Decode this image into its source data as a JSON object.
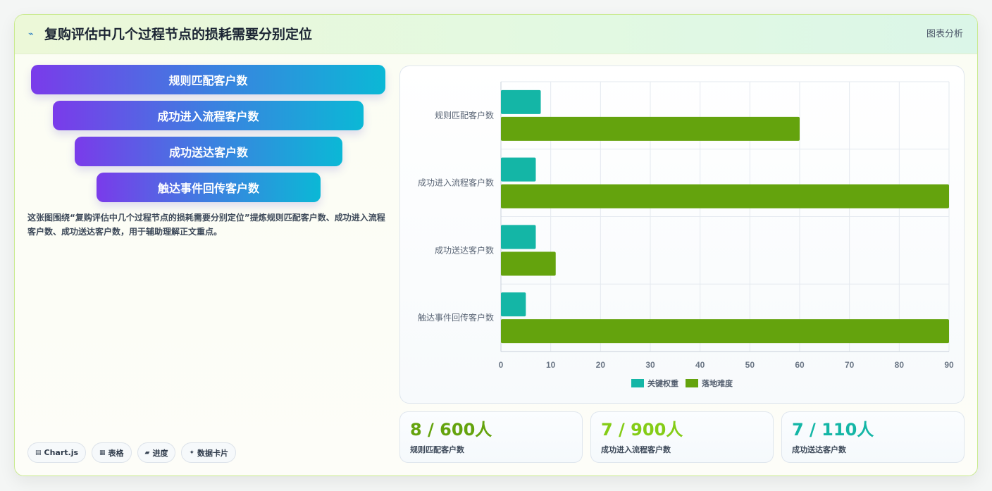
{
  "header": {
    "icon": "chart-line-icon",
    "title": "复购评估中几个过程节点的损耗需要分别定位",
    "tag": "图表分析"
  },
  "funnel": {
    "items": [
      {
        "label": "规则匹配客户数"
      },
      {
        "label": "成功进入流程客户数"
      },
      {
        "label": "成功送达客户数"
      },
      {
        "label": "触达事件回传客户数"
      }
    ]
  },
  "description": "这张图围绕“复购评估中几个过程节点的损耗需要分别定位”提炼规则匹配客户数、成功进入流程客户数、成功送达客户数，用于辅助理解正文重点。",
  "chips": [
    {
      "icon": "chart-icon",
      "label": "Chart.js"
    },
    {
      "icon": "table-icon",
      "label": "表格"
    },
    {
      "icon": "progress-icon",
      "label": "进度"
    },
    {
      "icon": "sparkle-icon",
      "label": "数据卡片"
    }
  ],
  "chart_data": {
    "type": "bar",
    "orientation": "horizontal",
    "categories": [
      "规则匹配客户数",
      "成功进入流程客户数",
      "成功送达客户数",
      "触达事件回传客户数"
    ],
    "series": [
      {
        "name": "关键权重",
        "color": "#14b6a6",
        "values": [
          8,
          7,
          7,
          5
        ]
      },
      {
        "name": "落地难度",
        "color": "#64a30d",
        "values": [
          60,
          90,
          11,
          90
        ]
      }
    ],
    "xlim": [
      0,
      90
    ],
    "xticks": [
      0,
      10,
      20,
      30,
      40,
      50,
      60,
      70,
      80,
      90
    ],
    "grid": true,
    "legend_position": "bottom"
  },
  "stats": [
    {
      "value": "8 / 600人",
      "label": "规则匹配客户数",
      "color": "#64a30d"
    },
    {
      "value": "7 / 900人",
      "label": "成功进入流程客户数",
      "color": "#84cc16"
    },
    {
      "value": "7 / 110人",
      "label": "成功送达客户数",
      "color": "#14b6a6"
    }
  ]
}
